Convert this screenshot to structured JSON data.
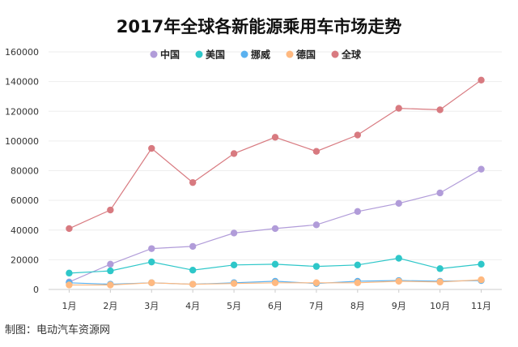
{
  "chart_data": {
    "type": "line",
    "title": "2017年全球各新能源乘用车市场走势",
    "categories": [
      "1月",
      "2月",
      "3月",
      "4月",
      "5月",
      "6月",
      "7月",
      "8月",
      "9月",
      "10月",
      "11月"
    ],
    "ylim": [
      0,
      160000
    ],
    "yticks": [
      0,
      20000,
      40000,
      60000,
      80000,
      100000,
      120000,
      140000,
      160000
    ],
    "grid": true,
    "legend_position": "top-center",
    "series": [
      {
        "name": "中国",
        "color": "#b19cd9",
        "values": [
          5000,
          17000,
          27500,
          29000,
          38000,
          41000,
          43500,
          52500,
          58000,
          65000,
          81000
        ]
      },
      {
        "name": "美国",
        "color": "#2ec7c9",
        "values": [
          11000,
          12500,
          18500,
          13000,
          16500,
          17000,
          15500,
          16500,
          21000,
          14000,
          17000
        ]
      },
      {
        "name": "挪威",
        "color": "#5ab1ef",
        "values": [
          4500,
          3500,
          4500,
          3500,
          4500,
          5500,
          4000,
          5500,
          6000,
          5500,
          6000
        ]
      },
      {
        "name": "德国",
        "color": "#ffb980",
        "values": [
          3000,
          3000,
          4500,
          3500,
          4000,
          4500,
          4500,
          4500,
          5500,
          5000,
          6500
        ]
      },
      {
        "name": "全球",
        "color": "#d87a80",
        "values": [
          41000,
          53500,
          95000,
          72000,
          91500,
          102500,
          93000,
          104000,
          122000,
          121000,
          141000
        ]
      }
    ],
    "source": "制图：电动汽车资源网"
  }
}
